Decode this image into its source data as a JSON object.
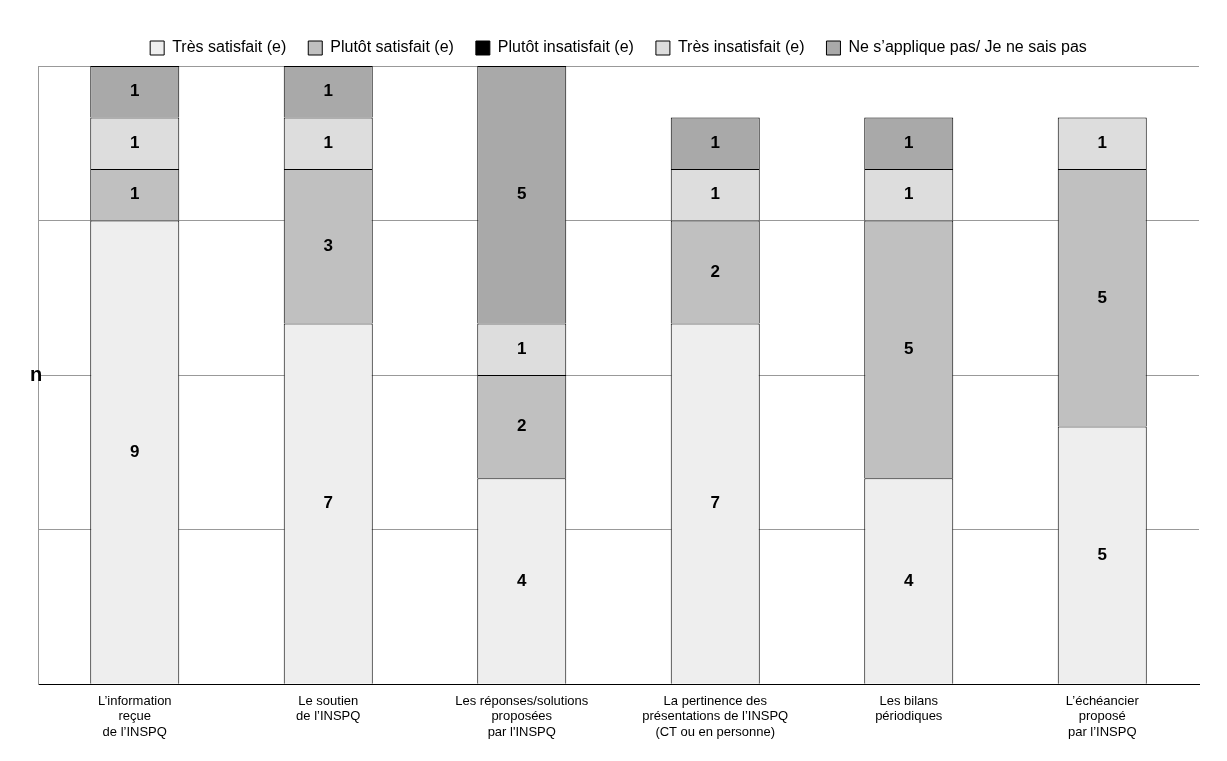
{
  "chart_data": {
    "type": "bar",
    "stacked": true,
    "ylabel": "n",
    "categories": [
      "L’information\nreçue\nde l’INSPQ",
      "Le soutien\nde l’INSPQ",
      "Les réponses/solutions\nproposées\npar l'INSPQ",
      "La pertinence des\nprésentations de l’INSPQ\n(CT ou en personne)",
      "Les bilans\npériodiques",
      "L’échéancier\nproposé\npar l’INSPQ"
    ],
    "series": [
      {
        "name": "Très satisfait (e)",
        "color": "#eeeeee",
        "values": [
          9,
          7,
          4,
          7,
          4,
          5
        ]
      },
      {
        "name": "Plutôt satisfait (e)",
        "color": "#c0c0c0",
        "values": [
          1,
          3,
          2,
          2,
          5,
          5
        ]
      },
      {
        "name": "Plutôt insatisfait (e)",
        "color": "#000000",
        "values": [
          null,
          null,
          null,
          null,
          null,
          null
        ]
      },
      {
        "name": "Très insatisfait (e)",
        "color": "#dddddd",
        "values": [
          1,
          1,
          1,
          1,
          1,
          1
        ]
      },
      {
        "name": "Ne s’applique pas/ Je ne sais pas",
        "color": "#a9a9a9",
        "values": [
          1,
          1,
          5,
          1,
          1,
          null
        ]
      }
    ],
    "data_labels": true,
    "ylim": [
      0,
      12
    ],
    "tick_labels": "x",
    "legend": "top",
    "grid": "y"
  }
}
